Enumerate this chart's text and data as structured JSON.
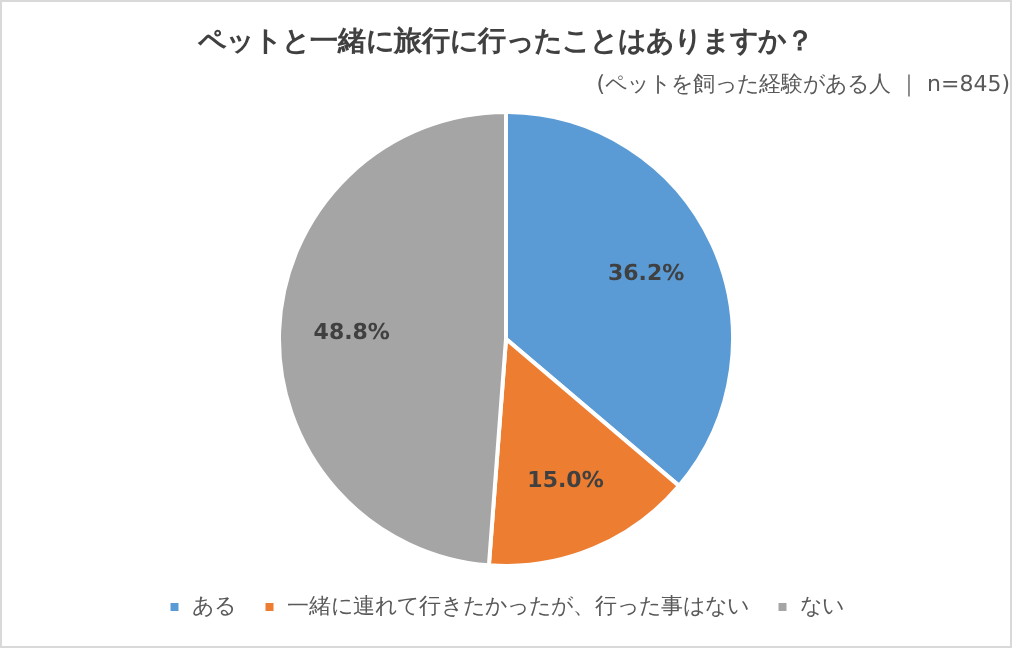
{
  "chart_data": {
    "type": "pie",
    "title": "ペットと一緒に旅行に行ったことはありますか？",
    "subtitle": "(ペットを飼った経験がある人 ｜ n=845)",
    "categories": [
      "ある",
      "一緒に連れて行きたかったが、行った事はない",
      "ない"
    ],
    "values": [
      36.2,
      15.0,
      48.8
    ],
    "value_labels": [
      "36.2%",
      "15.0%",
      "48.8%"
    ],
    "colors": [
      "#5b9bd5",
      "#ed7d31",
      "#a5a5a5"
    ],
    "legend": "bottom"
  }
}
